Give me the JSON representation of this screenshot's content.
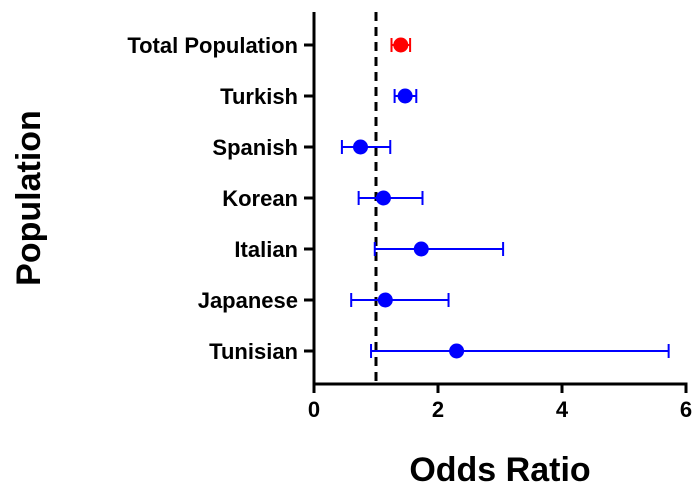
{
  "chart_data": {
    "type": "scatter",
    "subtype": "forest-plot",
    "xlabel": "Odds Ratio",
    "ylabel": "Population",
    "xlim": [
      0,
      6
    ],
    "xticks": [
      0,
      2,
      4,
      6
    ],
    "reference_line": 1,
    "grid": false,
    "categories": [
      "Total Population",
      "Turkish",
      "Spanish",
      "Korean",
      "Italian",
      "Japanese",
      "Tunisian"
    ],
    "points": [
      {
        "label": "Total Population",
        "or": 1.4,
        "lower": 1.25,
        "upper": 1.55,
        "color": "#ff0000"
      },
      {
        "label": "Turkish",
        "or": 1.47,
        "lower": 1.3,
        "upper": 1.65,
        "color": "#0000ff"
      },
      {
        "label": "Spanish",
        "or": 0.75,
        "lower": 0.45,
        "upper": 1.23,
        "color": "#0000ff"
      },
      {
        "label": "Korean",
        "or": 1.12,
        "lower": 0.72,
        "upper": 1.75,
        "color": "#0000ff"
      },
      {
        "label": "Italian",
        "or": 1.73,
        "lower": 0.98,
        "upper": 3.05,
        "color": "#0000ff"
      },
      {
        "label": "Japanese",
        "or": 1.15,
        "lower": 0.6,
        "upper": 2.17,
        "color": "#0000ff"
      },
      {
        "label": "Tunisian",
        "or": 2.3,
        "lower": 0.92,
        "upper": 5.72,
        "color": "#0000ff"
      }
    ]
  }
}
